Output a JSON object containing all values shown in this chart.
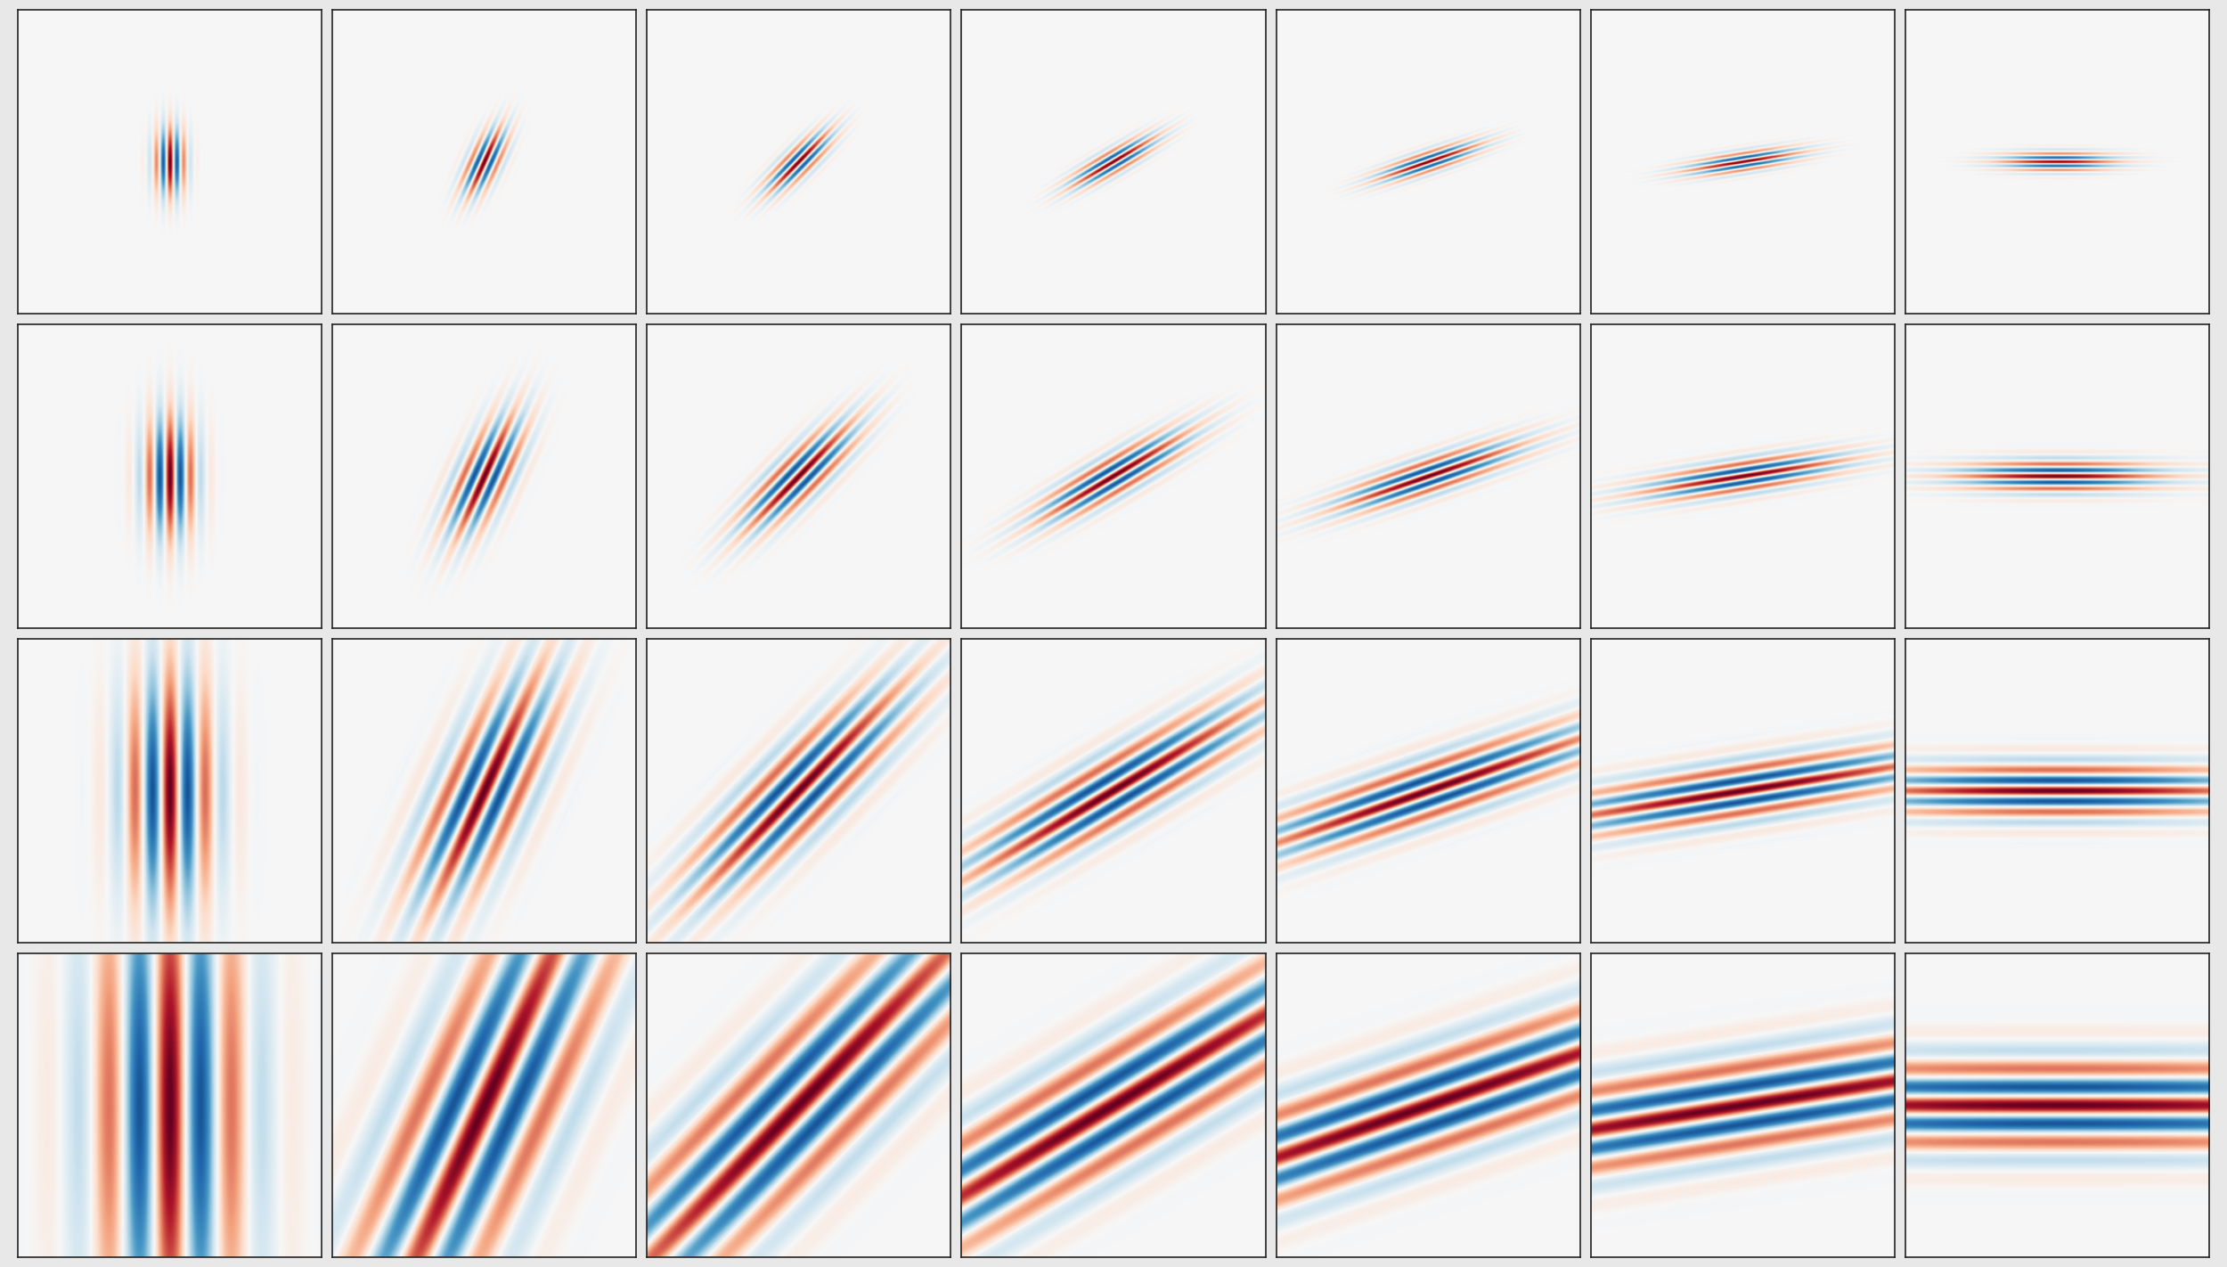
{
  "n_rows": 4,
  "n_cols": 7,
  "figsize": [
    25.0,
    14.22
  ],
  "dpi": 100,
  "background_color": "#e8e8e8",
  "subplot_bg": "#f8f8f8",
  "border_color": "#222222",
  "border_linewidth": 1.2,
  "colormap": "RdBu_r",
  "grid_size": 256,
  "row_params": [
    {
      "sigma_perp": 0.045,
      "sigma_par": 0.16,
      "freq": 18
    },
    {
      "sigma_perp": 0.075,
      "sigma_par": 0.28,
      "freq": 12
    },
    {
      "sigma_perp": 0.13,
      "sigma_par": 0.55,
      "freq": 7
    },
    {
      "sigma_perp": 0.22,
      "sigma_par": 1.1,
      "freq": 4
    }
  ],
  "col_orientations_deg": [
    0,
    15,
    30,
    45,
    60,
    75,
    90
  ]
}
